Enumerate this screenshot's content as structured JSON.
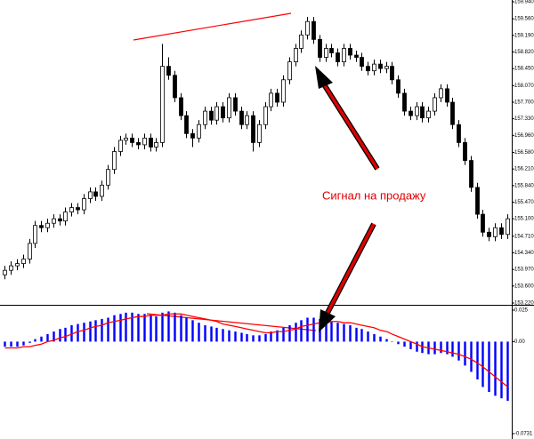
{
  "chart_data": [
    {
      "type": "candlestick",
      "annotation": "Сигнал на продажу",
      "ylim": [
        153.22,
        159.94
      ],
      "yticks": [
        {
          "value": 159.94,
          "label": "159.940"
        },
        {
          "value": 159.56,
          "label": "159.560"
        },
        {
          "value": 159.19,
          "label": "159.190"
        },
        {
          "value": 158.82,
          "label": "158.820"
        },
        {
          "value": 158.45,
          "label": "158.450"
        },
        {
          "value": 158.07,
          "label": "158.070"
        },
        {
          "value": 157.7,
          "label": "157.700"
        },
        {
          "value": 157.33,
          "label": "157.330"
        },
        {
          "value": 156.96,
          "label": "156.960"
        },
        {
          "value": 156.58,
          "label": "156.580"
        },
        {
          "value": 156.21,
          "label": "156.210"
        },
        {
          "value": 155.84,
          "label": "155.840"
        },
        {
          "value": 155.47,
          "label": "155.470"
        },
        {
          "value": 155.1,
          "label": "155.100"
        },
        {
          "value": 154.71,
          "label": "154.710"
        },
        {
          "value": 154.34,
          "label": "154.340"
        },
        {
          "value": 153.97,
          "label": "153.970"
        },
        {
          "value": 153.6,
          "label": "153.600"
        },
        {
          "value": 153.22,
          "label": "153.220"
        }
      ],
      "up_color": "#ffffff",
      "down_color": "#000000",
      "open": [
        153.85,
        153.95,
        154.05,
        154.1,
        154.2,
        154.55,
        154.95,
        154.9,
        155.0,
        155.1,
        155.05,
        155.25,
        155.35,
        155.3,
        155.55,
        155.7,
        155.6,
        155.85,
        156.2,
        156.6,
        156.85,
        156.9,
        156.8,
        156.75,
        156.9,
        156.7,
        156.8,
        158.5,
        158.3,
        157.8,
        157.4,
        157.0,
        156.9,
        157.2,
        157.5,
        157.3,
        157.6,
        157.35,
        157.8,
        157.5,
        157.2,
        157.4,
        156.8,
        157.2,
        157.6,
        157.9,
        157.7,
        158.2,
        158.6,
        158.9,
        159.2,
        159.5,
        159.1,
        158.7,
        158.9,
        158.8,
        158.6,
        158.9,
        158.75,
        158.7,
        158.5,
        158.4,
        158.55,
        158.45,
        158.5,
        158.2,
        157.9,
        157.5,
        157.4,
        157.6,
        157.35,
        157.5,
        157.8,
        158.0,
        157.7,
        157.2,
        156.8,
        156.4,
        155.8,
        155.2,
        154.8,
        154.7,
        154.9,
        154.75
      ],
      "high": [
        154.05,
        154.15,
        154.2,
        154.3,
        154.65,
        155.05,
        155.05,
        155.1,
        155.2,
        155.2,
        155.35,
        155.45,
        155.45,
        155.65,
        155.8,
        155.8,
        155.95,
        156.3,
        156.7,
        156.95,
        157.0,
        157.0,
        156.9,
        157.0,
        157.0,
        156.9,
        159.0,
        158.7,
        158.4,
        157.9,
        157.5,
        157.1,
        157.3,
        157.6,
        157.6,
        157.7,
        157.7,
        157.9,
        157.9,
        157.6,
        157.5,
        157.5,
        157.3,
        157.7,
        158.0,
        158.0,
        158.3,
        158.7,
        159.0,
        159.3,
        159.6,
        159.6,
        159.2,
        159.0,
        159.0,
        158.9,
        159.0,
        159.0,
        158.85,
        158.8,
        158.6,
        158.65,
        158.65,
        158.6,
        158.6,
        158.3,
        158.0,
        157.6,
        157.7,
        157.7,
        157.6,
        157.9,
        158.1,
        158.1,
        157.8,
        157.3,
        156.9,
        156.5,
        155.9,
        155.3,
        154.9,
        155.0,
        155.0,
        155.2
      ],
      "low": [
        153.75,
        153.85,
        153.95,
        154.0,
        154.1,
        154.45,
        154.8,
        154.8,
        154.9,
        154.95,
        154.95,
        155.15,
        155.2,
        155.2,
        155.45,
        155.5,
        155.5,
        155.75,
        156.1,
        156.5,
        156.75,
        156.7,
        156.65,
        156.65,
        156.6,
        156.6,
        156.7,
        158.2,
        157.7,
        157.3,
        156.9,
        156.7,
        156.8,
        157.1,
        157.2,
        157.2,
        157.25,
        157.25,
        157.4,
        157.1,
        157.1,
        156.6,
        156.7,
        157.1,
        157.5,
        157.6,
        157.6,
        158.1,
        158.5,
        158.8,
        159.1,
        159.0,
        158.6,
        158.6,
        158.7,
        158.5,
        158.5,
        158.65,
        158.6,
        158.4,
        158.3,
        158.3,
        158.35,
        158.35,
        158.1,
        157.8,
        157.4,
        157.3,
        157.3,
        157.25,
        157.25,
        157.4,
        157.7,
        157.6,
        157.1,
        156.7,
        156.3,
        155.7,
        155.1,
        154.7,
        154.6,
        154.6,
        154.65,
        154.65
      ],
      "close": [
        153.95,
        154.05,
        154.1,
        154.2,
        154.55,
        154.95,
        154.9,
        155.0,
        155.1,
        155.05,
        155.25,
        155.35,
        155.3,
        155.55,
        155.7,
        155.6,
        155.85,
        156.2,
        156.6,
        156.85,
        156.9,
        156.8,
        156.75,
        156.9,
        156.7,
        156.8,
        158.5,
        158.3,
        157.8,
        157.4,
        157.0,
        156.9,
        157.2,
        157.5,
        157.3,
        157.6,
        157.35,
        157.8,
        157.5,
        157.2,
        157.4,
        156.8,
        157.2,
        157.6,
        157.9,
        157.7,
        158.2,
        158.6,
        158.9,
        159.2,
        159.5,
        159.1,
        158.7,
        158.9,
        158.8,
        158.6,
        158.9,
        158.75,
        158.7,
        158.5,
        158.4,
        158.55,
        158.45,
        158.5,
        158.2,
        157.9,
        157.5,
        157.4,
        157.6,
        157.35,
        157.5,
        157.8,
        158.0,
        157.7,
        157.2,
        156.8,
        156.4,
        155.8,
        155.2,
        154.8,
        154.7,
        154.9,
        154.75,
        155.1
      ]
    },
    {
      "type": "macd",
      "ylim": [
        -0.0731,
        0.025
      ],
      "yticks": [
        0.025,
        {
          "value": 0,
          "label": "0.00"
        },
        -0.0731
      ],
      "color": "#0000ff",
      "values": [
        -0.004,
        -0.004,
        -0.004,
        -0.003,
        -0.001,
        0.002,
        0.004,
        0.006,
        0.008,
        0.01,
        0.011,
        0.013,
        0.014,
        0.015,
        0.016,
        0.017,
        0.018,
        0.019,
        0.021,
        0.022,
        0.023,
        0.023,
        0.022,
        0.022,
        0.021,
        0.02,
        0.023,
        0.024,
        0.023,
        0.021,
        0.019,
        0.017,
        0.015,
        0.013,
        0.012,
        0.011,
        0.01,
        0.009,
        0.008,
        0.007,
        0.006,
        0.005,
        0.005,
        0.006,
        0.008,
        0.009,
        0.011,
        0.013,
        0.015,
        0.017,
        0.019,
        0.019,
        0.018,
        0.017,
        0.016,
        0.015,
        0.014,
        0.013,
        0.011,
        0.01,
        0.008,
        0.006,
        0.004,
        0.002,
        0.0,
        -0.002,
        -0.004,
        -0.006,
        -0.008,
        -0.009,
        -0.01,
        -0.01,
        -0.009,
        -0.01,
        -0.012,
        -0.015,
        -0.019,
        -0.024,
        -0.03,
        -0.036,
        -0.04,
        -0.043,
        -0.045,
        -0.047
      ],
      "signal": {
        "color": "#ff0000",
        "values": [
          -0.005,
          -0.005,
          -0.005,
          -0.004,
          -0.004,
          -0.003,
          -0.002,
          0.0,
          0.001,
          0.003,
          0.004,
          0.006,
          0.008,
          0.009,
          0.011,
          0.012,
          0.013,
          0.015,
          0.016,
          0.017,
          0.018,
          0.019,
          0.02,
          0.02,
          0.021,
          0.021,
          0.021,
          0.022,
          0.022,
          0.022,
          0.021,
          0.02,
          0.019,
          0.018,
          0.017,
          0.016,
          0.014,
          0.013,
          0.012,
          0.011,
          0.01,
          0.009,
          0.008,
          0.007,
          0.007,
          0.008,
          0.008,
          0.009,
          0.01,
          0.012,
          0.013,
          0.014,
          0.015,
          0.015,
          0.016,
          0.016,
          0.015,
          0.015,
          0.014,
          0.013,
          0.012,
          0.011,
          0.009,
          0.008,
          0.006,
          0.004,
          0.002,
          0.0,
          -0.002,
          -0.004,
          -0.005,
          -0.006,
          -0.007,
          -0.008,
          -0.009,
          -0.01,
          -0.012,
          -0.014,
          -0.017,
          -0.02,
          -0.024,
          -0.028,
          -0.032,
          -0.036
        ]
      }
    }
  ]
}
